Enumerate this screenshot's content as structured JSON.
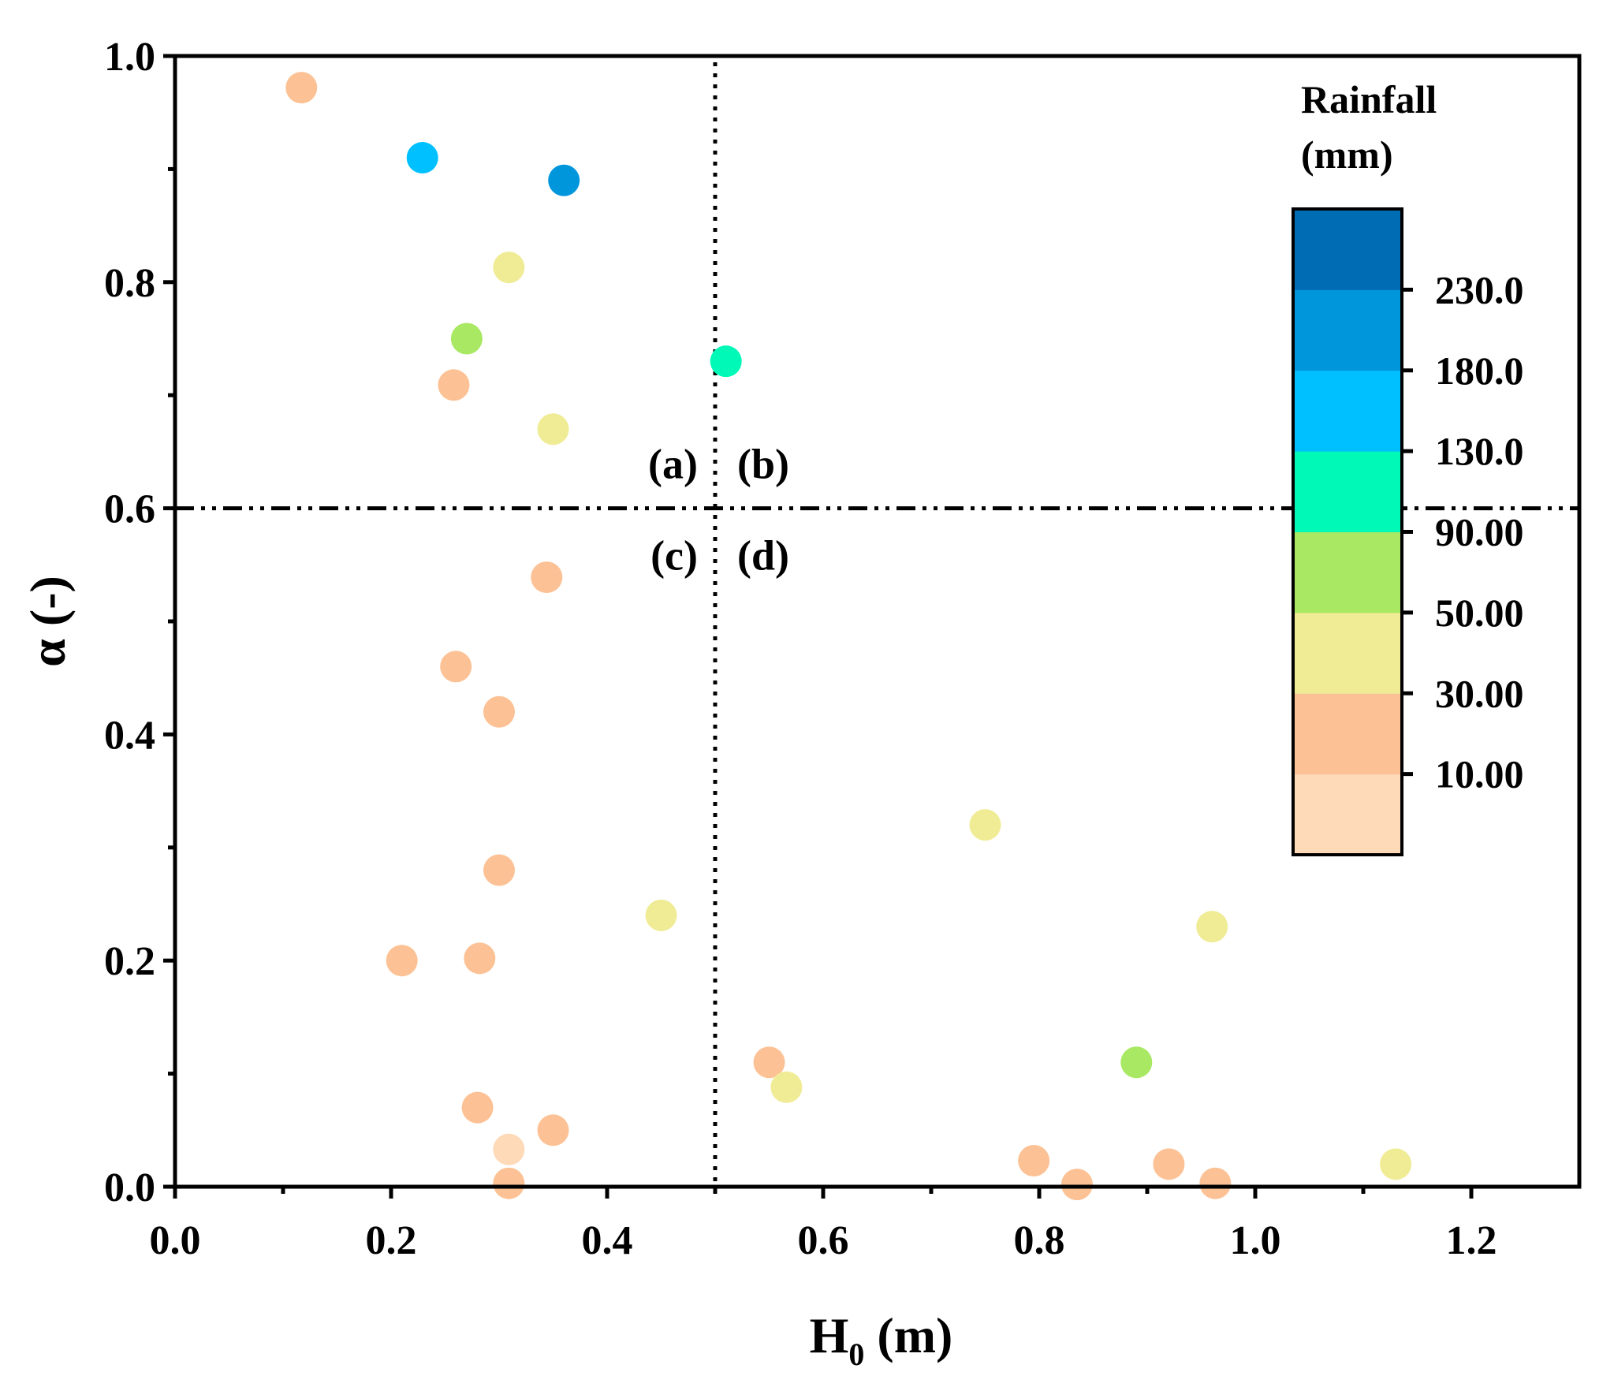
{
  "chart_data": {
    "type": "scatter",
    "title": "",
    "xlabel": "H",
    "xlabel_subscript": "0",
    "xlabel_unit": " (m)",
    "ylabel": "α (-)",
    "xlim": [
      0.0,
      1.3
    ],
    "ylim": [
      0.0,
      1.0
    ],
    "x_ticks": [
      0.0,
      0.2,
      0.4,
      0.6,
      0.8,
      1.0,
      1.2
    ],
    "x_tick_labels": [
      "0.0",
      "0.2",
      "0.4",
      "0.6",
      "0.8",
      "1.0",
      "1.2"
    ],
    "x_minor_ticks": [
      0.1,
      0.3,
      0.5,
      0.7,
      0.9,
      1.1
    ],
    "y_ticks": [
      0.0,
      0.2,
      0.4,
      0.6,
      0.8,
      1.0
    ],
    "y_tick_labels": [
      "0.0",
      "0.2",
      "0.4",
      "0.6",
      "0.8",
      "1.0"
    ],
    "y_minor_ticks": [
      0.1,
      0.3,
      0.5,
      0.7,
      0.9
    ],
    "grid": false,
    "reference_lines": {
      "vertical_x": 0.5,
      "horizontal_y": 0.6
    },
    "quadrant_labels": [
      "(a)",
      "(b)",
      "(c)",
      "(d)"
    ],
    "colorbar": {
      "title_line1": "Rainfall",
      "title_line2": "(mm)",
      "placement": "top-right",
      "bins": [
        {
          "color": "#ffdab9"
        },
        {
          "color": "#fcc295"
        },
        {
          "color": "#f0ec96"
        },
        {
          "color": "#a8e862"
        },
        {
          "color": "#00f9b7"
        },
        {
          "color": "#00c0ff"
        },
        {
          "color": "#0096dc"
        },
        {
          "color": "#006cb4"
        }
      ],
      "tick_labels": [
        "10.00",
        "30.00",
        "50.00",
        "90.00",
        "130.0",
        "180.0",
        "230.0"
      ]
    },
    "points": [
      {
        "x": 0.117,
        "y": 0.972,
        "bin": 1
      },
      {
        "x": 0.229,
        "y": 0.91,
        "bin": 5
      },
      {
        "x": 0.36,
        "y": 0.89,
        "bin": 6
      },
      {
        "x": 0.309,
        "y": 0.813,
        "bin": 2
      },
      {
        "x": 0.27,
        "y": 0.75,
        "bin": 3
      },
      {
        "x": 0.51,
        "y": 0.73,
        "bin": 4
      },
      {
        "x": 0.258,
        "y": 0.709,
        "bin": 1
      },
      {
        "x": 0.35,
        "y": 0.67,
        "bin": 2
      },
      {
        "x": 0.344,
        "y": 0.539,
        "bin": 1
      },
      {
        "x": 0.26,
        "y": 0.46,
        "bin": 1
      },
      {
        "x": 0.3,
        "y": 0.42,
        "bin": 1
      },
      {
        "x": 0.75,
        "y": 0.32,
        "bin": 2
      },
      {
        "x": 0.3,
        "y": 0.28,
        "bin": 1
      },
      {
        "x": 0.45,
        "y": 0.24,
        "bin": 2
      },
      {
        "x": 0.96,
        "y": 0.23,
        "bin": 2
      },
      {
        "x": 0.282,
        "y": 0.202,
        "bin": 1
      },
      {
        "x": 0.21,
        "y": 0.2,
        "bin": 1
      },
      {
        "x": 0.55,
        "y": 0.11,
        "bin": 1
      },
      {
        "x": 0.89,
        "y": 0.11,
        "bin": 3
      },
      {
        "x": 0.566,
        "y": 0.088,
        "bin": 2
      },
      {
        "x": 0.28,
        "y": 0.07,
        "bin": 1
      },
      {
        "x": 0.35,
        "y": 0.05,
        "bin": 1
      },
      {
        "x": 0.309,
        "y": 0.033,
        "bin": 0
      },
      {
        "x": 0.795,
        "y": 0.023,
        "bin": 1
      },
      {
        "x": 0.92,
        "y": 0.02,
        "bin": 1
      },
      {
        "x": 1.13,
        "y": 0.02,
        "bin": 2
      },
      {
        "x": 0.309,
        "y": 0.003,
        "bin": 1
      },
      {
        "x": 0.835,
        "y": 0.002,
        "bin": 1
      },
      {
        "x": 0.963,
        "y": 0.003,
        "bin": 1
      }
    ]
  }
}
